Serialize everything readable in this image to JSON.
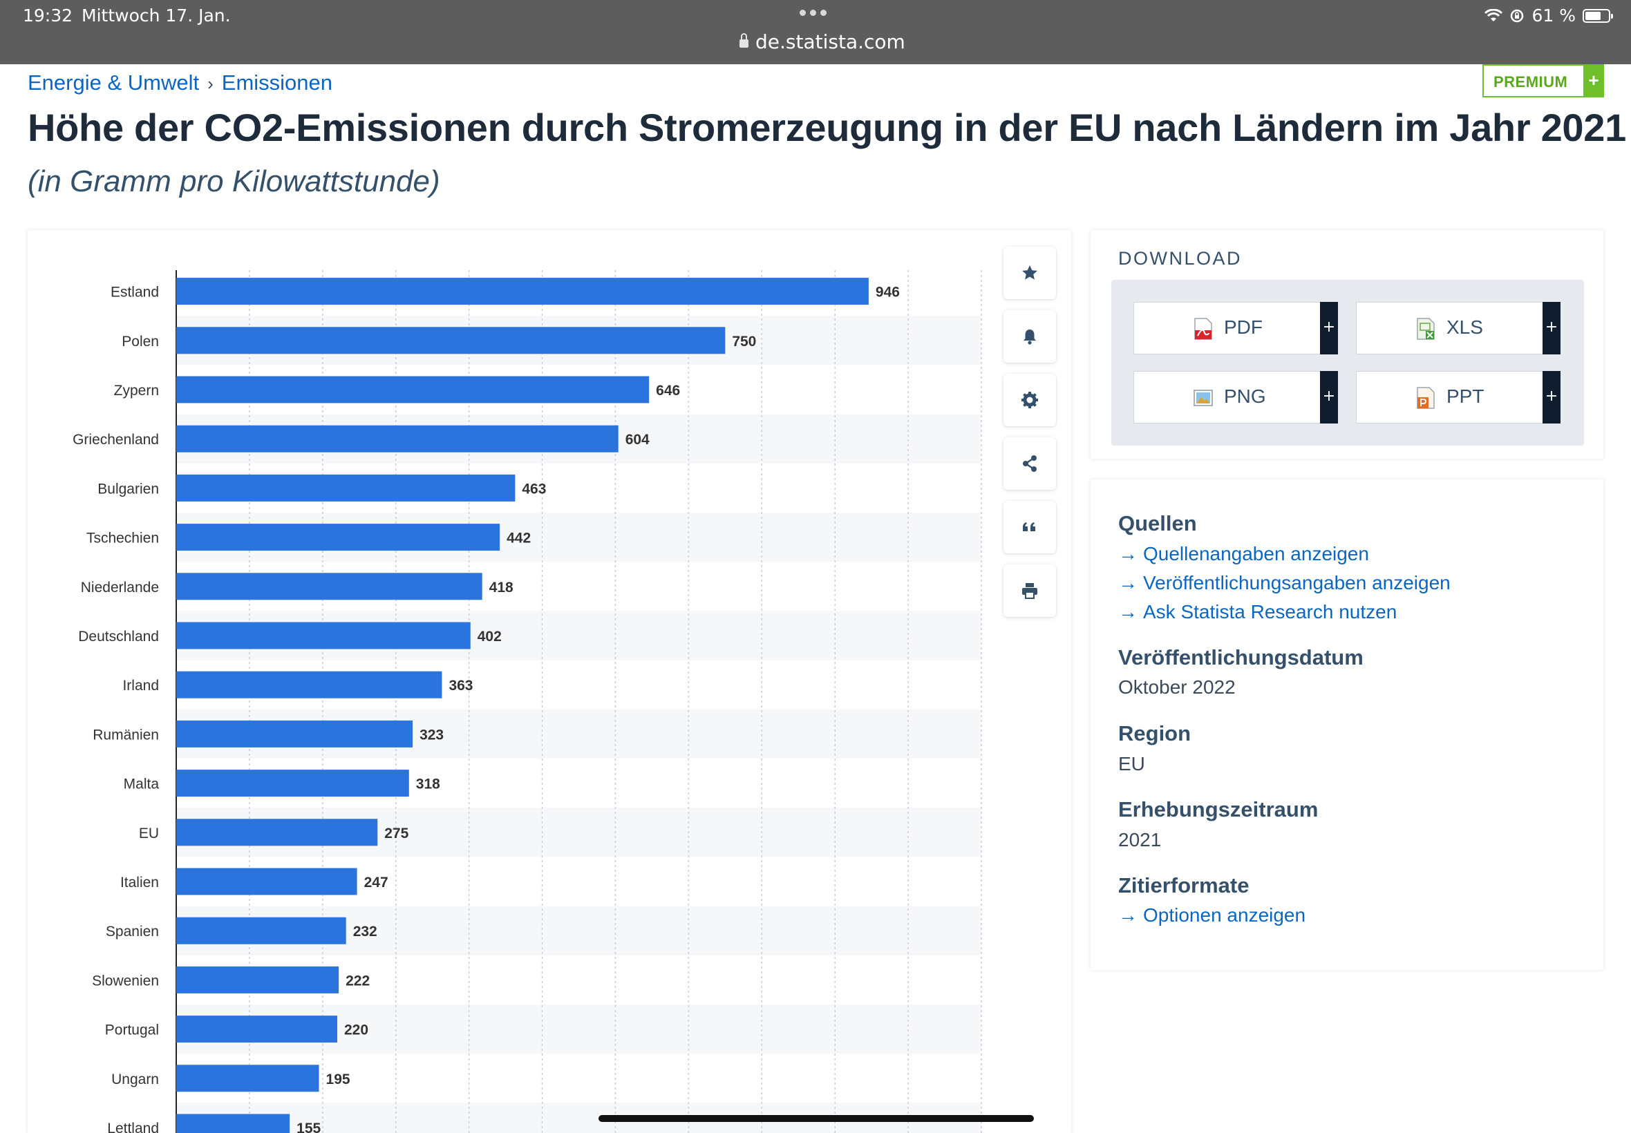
{
  "status_bar": {
    "time": "19:32",
    "date": "Mittwoch 17. Jan.",
    "url": "de.statista.com",
    "battery": "61 %"
  },
  "breadcrumb": {
    "first": "Energie & Umwelt",
    "separator": "›",
    "second": "Emissionen"
  },
  "premium": {
    "label": "PREMIUM",
    "plus": "+"
  },
  "title": "Höhe der CO2-Emissionen durch Stromerzeugung in der EU nach Ländern im Jahr 2021",
  "subtitle": "(in Gramm pro Kilowattstunde)",
  "tools": [
    "star-icon",
    "bell-icon",
    "gear-icon",
    "share-icon",
    "quote-icon",
    "print-icon"
  ],
  "download": {
    "title": "DOWNLOAD",
    "buttons": [
      {
        "label": "PDF",
        "plus": "+"
      },
      {
        "label": "XLS",
        "plus": "+"
      },
      {
        "label": "PNG",
        "plus": "+"
      },
      {
        "label": "PPT",
        "plus": "+"
      }
    ]
  },
  "info": {
    "sources_heading": "Quellen",
    "links": [
      "Quellenangaben anzeigen",
      "Veröffentlichungsangaben anzeigen",
      "Ask Statista Research nutzen"
    ],
    "pubdate_heading": "Veröffentlichungsdatum",
    "pubdate_value": "Oktober 2022",
    "region_heading": "Region",
    "region_value": "EU",
    "period_heading": "Erhebungszeitraum",
    "period_value": "2021",
    "cite_heading": "Zitierformate",
    "cite_link": "Optionen anzeigen"
  },
  "colors": {
    "bar": "#2b74de",
    "link": "#0b66c3",
    "premium": "#6fbf2a"
  },
  "chart_data": {
    "type": "bar",
    "orientation": "horizontal",
    "categories": [
      "Estland",
      "Polen",
      "Zypern",
      "Griechenland",
      "Bulgarien",
      "Tschechien",
      "Niederlande",
      "Deutschland",
      "Irland",
      "Rumänien",
      "Malta",
      "EU",
      "Italien",
      "Spanien",
      "Slowenien",
      "Portugal",
      "Ungarn",
      "Lettland"
    ],
    "values": [
      946,
      750,
      646,
      604,
      463,
      442,
      418,
      402,
      363,
      323,
      318,
      275,
      247,
      232,
      222,
      220,
      195,
      155
    ],
    "xlim": [
      0,
      1100
    ],
    "grid": true
  }
}
